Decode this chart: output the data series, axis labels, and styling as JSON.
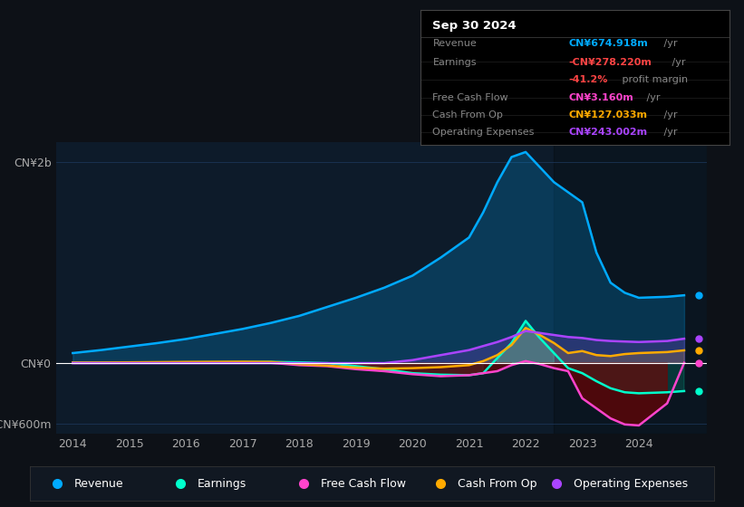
{
  "bg_color": "#0d1117",
  "plot_bg_color": "#0d1b2a",
  "grid_color": "#1e3a5f",
  "axis_label_color": "#aaaaaa",
  "zero_line_color": "#ffffff",
  "title_date": "Sep 30 2024",
  "ylim": [
    -700,
    2200
  ],
  "yticks": [
    -600,
    0,
    2000
  ],
  "ytick_labels": [
    "-CN¥600m",
    "CN¥0",
    "CN¥2b"
  ],
  "years": [
    2014,
    2014.5,
    2015,
    2015.5,
    2016,
    2016.5,
    2017,
    2017.5,
    2018,
    2018.5,
    2019,
    2019.5,
    2020,
    2020.5,
    2021,
    2021.25,
    2021.5,
    2021.75,
    2022,
    2022.25,
    2022.5,
    2022.75,
    2023,
    2023.25,
    2023.5,
    2023.75,
    2024,
    2024.5,
    2024.8
  ],
  "revenue": [
    100,
    130,
    165,
    200,
    240,
    290,
    340,
    400,
    470,
    560,
    650,
    750,
    870,
    1050,
    1250,
    1500,
    1800,
    2050,
    2100,
    1950,
    1800,
    1700,
    1600,
    1100,
    800,
    700,
    650,
    660,
    675
  ],
  "earnings": [
    5,
    5,
    6,
    7,
    8,
    9,
    10,
    12,
    8,
    0,
    -30,
    -60,
    -100,
    -115,
    -120,
    -100,
    50,
    200,
    420,
    250,
    100,
    -50,
    -100,
    -180,
    -250,
    -290,
    -300,
    -290,
    -278
  ],
  "free_cash_flow": [
    2,
    2,
    3,
    3,
    4,
    4,
    5,
    3,
    -20,
    -30,
    -60,
    -80,
    -110,
    -130,
    -120,
    -100,
    -80,
    -20,
    20,
    -10,
    -50,
    -80,
    -350,
    -450,
    -550,
    -610,
    -620,
    -400,
    3
  ],
  "cash_from_op": [
    5,
    6,
    8,
    10,
    12,
    13,
    14,
    12,
    -10,
    -25,
    -45,
    -55,
    -50,
    -40,
    -20,
    20,
    80,
    180,
    350,
    280,
    200,
    100,
    120,
    80,
    70,
    90,
    100,
    110,
    127
  ],
  "operating_expenses": [
    0,
    0,
    0,
    0,
    0,
    0,
    0,
    0,
    0,
    0,
    0,
    0,
    30,
    80,
    130,
    170,
    210,
    260,
    320,
    300,
    280,
    260,
    250,
    230,
    220,
    215,
    210,
    220,
    243
  ],
  "revenue_color": "#00aaff",
  "earnings_color": "#00ffcc",
  "free_cash_flow_color": "#ff44cc",
  "cash_from_op_color": "#ffaa00",
  "operating_expenses_color": "#aa44ff",
  "legend_items": [
    {
      "label": "Revenue",
      "color": "#00aaff"
    },
    {
      "label": "Earnings",
      "color": "#00ffcc"
    },
    {
      "label": "Free Cash Flow",
      "color": "#ff44cc"
    },
    {
      "label": "Cash From Op",
      "color": "#ffaa00"
    },
    {
      "label": "Operating Expenses",
      "color": "#aa44ff"
    }
  ],
  "info_rows": [
    {
      "label": "Revenue",
      "value": "CN¥674.918m",
      "suffix": " /yr",
      "value_color": "#00aaff"
    },
    {
      "label": "Earnings",
      "value": "-CN¥278.220m",
      "suffix": " /yr",
      "value_color": "#ff4444"
    },
    {
      "label": "",
      "value": "-41.2%",
      "suffix": " profit margin",
      "value_color": "#ff4444"
    },
    {
      "label": "Free Cash Flow",
      "value": "CN¥3.160m",
      "suffix": " /yr",
      "value_color": "#ff44cc"
    },
    {
      "label": "Cash From Op",
      "value": "CN¥127.033m",
      "suffix": " /yr",
      "value_color": "#ffaa00"
    },
    {
      "label": "Operating Expenses",
      "value": "CN¥243.002m",
      "suffix": " /yr",
      "value_color": "#aa44ff"
    }
  ]
}
